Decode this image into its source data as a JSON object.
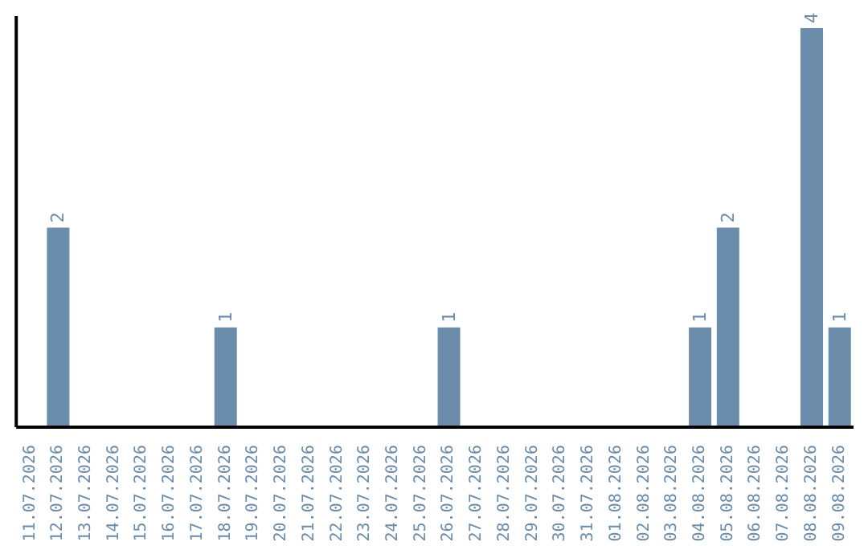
{
  "chart_data": {
    "type": "bar",
    "categories": [
      "11.07.2026",
      "12.07.2026",
      "13.07.2026",
      "14.07.2026",
      "15.07.2026",
      "16.07.2026",
      "17.07.2026",
      "18.07.2026",
      "19.07.2026",
      "20.07.2026",
      "21.07.2026",
      "22.07.2026",
      "23.07.2026",
      "24.07.2026",
      "25.07.2026",
      "26.07.2026",
      "27.07.2026",
      "28.07.2026",
      "29.07.2026",
      "30.07.2026",
      "31.07.2026",
      "01.08.2026",
      "02.08.2026",
      "03.08.2026",
      "04.08.2026",
      "05.08.2026",
      "06.08.2026",
      "07.08.2026",
      "08.08.2026",
      "09.08.2026"
    ],
    "values": [
      0,
      2,
      0,
      0,
      0,
      0,
      0,
      1,
      0,
      0,
      0,
      0,
      0,
      0,
      0,
      1,
      0,
      0,
      0,
      0,
      0,
      0,
      0,
      0,
      1,
      2,
      0,
      0,
      4,
      1
    ],
    "color": "#6b8cab",
    "value_labels": [
      null,
      "2",
      null,
      null,
      null,
      null,
      null,
      "1",
      null,
      null,
      null,
      null,
      null,
      null,
      null,
      "1",
      null,
      null,
      null,
      null,
      null,
      null,
      null,
      null,
      "1",
      "2",
      null,
      null,
      "4",
      "1"
    ]
  }
}
